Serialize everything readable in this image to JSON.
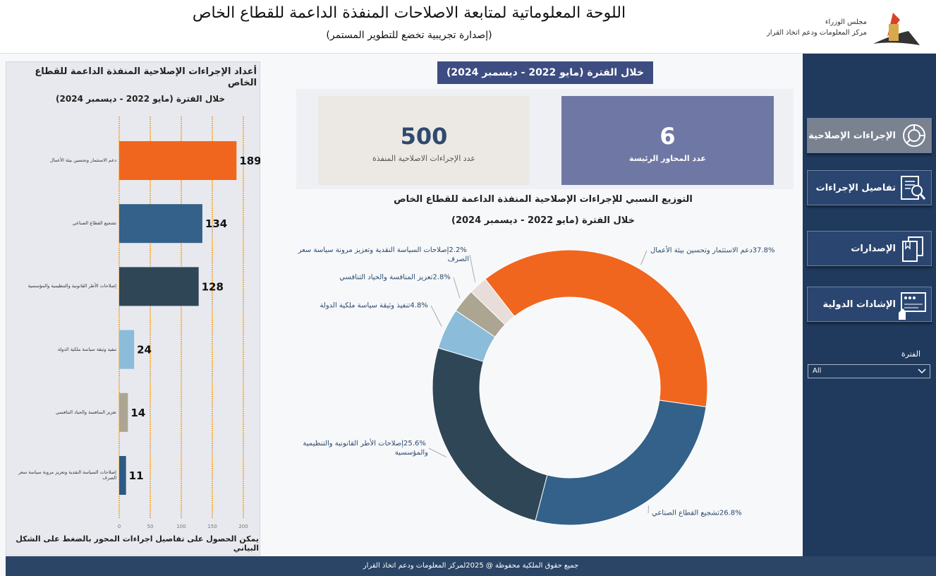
{
  "header": {
    "title": "اللوحة المعلوماتية لمتابعة الاصلاحات المنفذة الداعمة للقطاع الخاص",
    "subtitle": "(إصدارة تجريبية تخضع للتطوير المستمر)",
    "org_line1": "مجلس الوزراء",
    "org_line2": "مركز المعلومات ودعم اتخاذ القرار"
  },
  "left_panel": {
    "title": "أعداد الإجراءات الإصلاحية المنفذة الداعمة للقطاع الخاص",
    "period": "خلال الفترة (مايو 2022 - ديسمبر 2024)",
    "hint": "يمكن الحصول على تفاصيل اجراءات المحور بالضغط على الشكل البياني"
  },
  "center": {
    "period_banner": "خلال الفترة (مايو 2022 - ديسمبر 2024)",
    "kpi_total_value": "500",
    "kpi_total_label": "عدد الإجراءات الاصلاحية المنفذة",
    "kpi_axes_value": "6",
    "kpi_axes_label": "عدد المحاور الرئيسة",
    "donut_title": "التوزيع النسبي للإجراءات الإصلاحية المنفذة الداعمة للقطاع الخاص",
    "donut_period": "خلال الفترة (مايو 2022 - ديسمبر 2024)"
  },
  "sidebar": {
    "items": [
      {
        "label": "الإجراءات الإصلاحية"
      },
      {
        "label": "تفاصيل الإجراءات"
      },
      {
        "label": "الإصدارات"
      },
      {
        "label": "الإشادات الدولية"
      }
    ],
    "filter_label": "الفترة",
    "filter_value": "All"
  },
  "footer": "جميع حقوق الملكية محفوظة @ 2025لمركز المعلومات ودعم اتخاذ القرار",
  "chart_data": [
    {
      "type": "bar",
      "orientation": "horizontal",
      "categories": [
        "دعم الاستثمار وتحسين بيئة الأعمال",
        "تشجيع القطاع الصناعي",
        "إصلاحات الأطر القانونية والتنظيمية والمؤسسية",
        "تنفيذ وثيقة سياسة ملكية الدولة",
        "تعزيز المنافسة والحياد التنافسي",
        "إصلاحات السياسة النقدية وتعزيز مرونة سياسة سعر الصرف"
      ],
      "values": [
        189,
        134,
        128,
        24,
        14,
        11
      ],
      "colors": [
        "#f0661e",
        "#336189",
        "#2f4656",
        "#8bbcda",
        "#aba592",
        "#2d5a84"
      ],
      "xlim": [
        0,
        200
      ],
      "xticks": [
        "0",
        "50",
        "100",
        "150",
        "200"
      ],
      "grid": true
    },
    {
      "type": "pie",
      "donut": true,
      "labels": [
        "دعم الاستثمار وتحسين بيئة الأعمال",
        "تشجيع القطاع الصناعي",
        "إصلاحات الأطر القانونية والتنظيمية والمؤسسية",
        "تنفيذ وثيقة سياسة ملكية الدولة",
        "تعزيز المنافسة والحياد التنافسي",
        "إصلاحات السياسة النقدية وتعزيز مرونة سياسة سعر الصرف"
      ],
      "values": [
        37.8,
        26.8,
        25.6,
        4.8,
        2.8,
        2.2
      ],
      "value_labels": [
        "37.8%",
        "26.8%",
        "25.6%",
        "4.8%",
        "2.8%",
        "2.2%"
      ],
      "colors": [
        "#f0661e",
        "#336189",
        "#2f4656",
        "#8bbcda",
        "#aba592",
        "#e8ddd8"
      ]
    }
  ]
}
